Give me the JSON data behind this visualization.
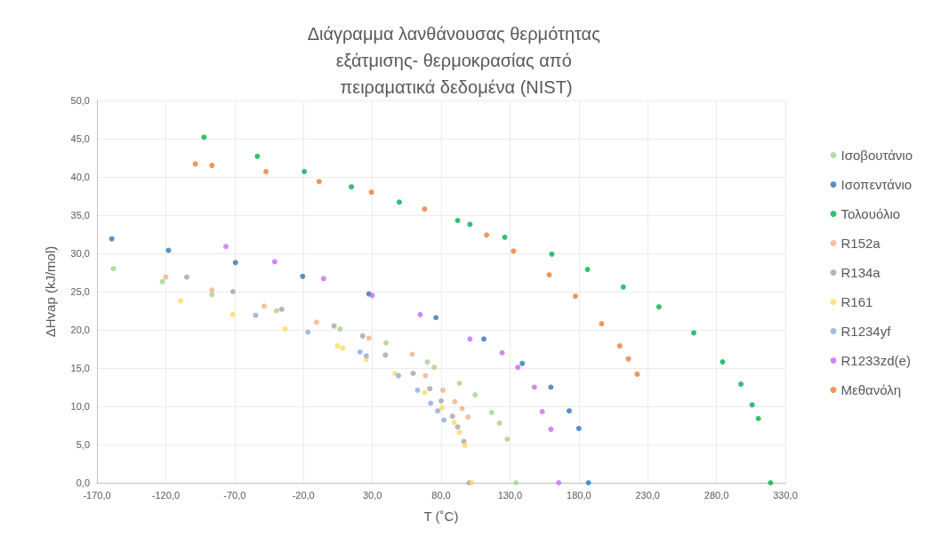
{
  "chart_data": {
    "type": "scatter",
    "title": "Διάγραμμα λανθάνουσας θερμότητας εξάτμισης- θερμοκρασίας από πειραματικά δεδομένα (NIST)",
    "xlabel": "T (˚C)",
    "ylabel": "ΔHvap (kJ/mol)",
    "xlim": [
      -170,
      330
    ],
    "xticks": [
      {
        "value": -170,
        "label": "-170,0"
      },
      {
        "value": -120,
        "label": "-120,0"
      },
      {
        "value": -70,
        "label": "-70,0"
      },
      {
        "value": -20,
        "label": "-20,0"
      },
      {
        "value": 30,
        "label": "30,0"
      },
      {
        "value": 80,
        "label": "80,0"
      },
      {
        "value": 130,
        "label": "130,0"
      },
      {
        "value": 180,
        "label": "180,0"
      },
      {
        "value": 230,
        "label": "230,0"
      },
      {
        "value": 280,
        "label": "280,0"
      },
      {
        "value": 330,
        "label": "330,0"
      }
    ],
    "ylim": [
      0,
      50
    ],
    "yticks": [
      {
        "value": 0,
        "label": "0,0"
      },
      {
        "value": 5,
        "label": "5,0"
      },
      {
        "value": 10,
        "label": "10,0"
      },
      {
        "value": 15,
        "label": "15,0"
      },
      {
        "value": 20,
        "label": "20,0"
      },
      {
        "value": 25,
        "label": "25,0"
      },
      {
        "value": 30,
        "label": "30,0"
      },
      {
        "value": 35,
        "label": "35,0"
      },
      {
        "value": 40,
        "label": "40,0"
      },
      {
        "value": 45,
        "label": "45,0"
      },
      {
        "value": 50,
        "label": "50,0"
      }
    ],
    "grid": true,
    "legend": "right",
    "marker": "circle",
    "series": [
      {
        "name": "Ισοβουτάνιο",
        "color": "#a9d18e",
        "x": [
          -158,
          -122.5,
          -86.5,
          -39.6,
          6.6,
          40,
          70,
          75,
          93.3,
          104.7,
          116.7,
          122.4,
          128,
          134.4
        ],
        "values": [
          28.0,
          26.3,
          24.6,
          22.5,
          20.1,
          18.3,
          15.8,
          15.1,
          13.0,
          11.5,
          9.2,
          7.8,
          5.7,
          0
        ]
      },
      {
        "name": "Ισοπεντάνιο",
        "color": "#2e75b6",
        "x": [
          -159.2,
          -118,
          -69.4,
          -20.6,
          27.5,
          76.2,
          111,
          138.9,
          159.7,
          173,
          180,
          187
        ],
        "values": [
          31.9,
          30.4,
          28.8,
          27.0,
          24.7,
          21.6,
          18.8,
          15.6,
          12.5,
          9.4,
          7.1,
          0
        ]
      },
      {
        "name": "Τολουόλιο",
        "color": "#00b050",
        "x": [
          -92.2,
          -53.5,
          -19.4,
          14.8,
          49.6,
          92,
          100.9,
          126.2,
          160.4,
          186.3,
          212.3,
          238.2,
          263.5,
          284.4,
          297.7,
          305.9,
          310.4,
          319.2
        ],
        "values": [
          45.2,
          42.7,
          40.7,
          38.7,
          36.7,
          34.3,
          33.8,
          32.1,
          29.9,
          27.9,
          25.6,
          23.0,
          19.6,
          15.8,
          12.9,
          10.2,
          8.4,
          0
        ]
      },
      {
        "name": "R152a",
        "color": "#f4b183",
        "x": [
          -120,
          -86.5,
          -48.5,
          -10.5,
          27.5,
          59,
          68.6,
          81.3,
          90,
          95.2,
          99.6
        ],
        "values": [
          26.9,
          25.2,
          23.1,
          21.0,
          18.9,
          16.8,
          14.0,
          12.1,
          10.6,
          9.7,
          8.6
        ]
      },
      {
        "name": "R134a",
        "color": "#a5a5a5",
        "x": [
          -104.8,
          -71.3,
          -35.8,
          2.2,
          23,
          39.5,
          59.7,
          71.8,
          80,
          88.2,
          92,
          96.5,
          100.3
        ],
        "values": [
          26.9,
          25.0,
          22.7,
          20.5,
          19.2,
          16.7,
          14.3,
          12.3,
          10.7,
          8.7,
          7.3,
          5.4,
          0
        ]
      },
      {
        "name": "R161",
        "color": "#ffd966",
        "x": [
          -109.3,
          -71.3,
          -33.3,
          4.7,
          8.5,
          25.6,
          46.5,
          68,
          80.6,
          89.5,
          93.3,
          97.1,
          102.2
        ],
        "values": [
          23.8,
          22.0,
          20.1,
          17.9,
          17.6,
          16.1,
          14.3,
          11.8,
          9.8,
          7.9,
          6.6,
          4.9,
          0
        ]
      },
      {
        "name": "R1234yf",
        "color": "#8faadc",
        "x": [
          -54.8,
          -16.8,
          21.1,
          25.6,
          49,
          62.9,
          72.4,
          77.5,
          82
        ],
        "values": [
          21.9,
          19.7,
          17.1,
          16.6,
          14.0,
          12.1,
          10.4,
          9.4,
          8.2
        ]
      },
      {
        "name": "R1233zd(e)",
        "color": "#cc66ff",
        "x": [
          -76.3,
          -40.9,
          -5.4,
          30,
          64.8,
          100.9,
          124.3,
          135.7,
          147.7,
          153.4,
          159.7,
          165.4
        ],
        "values": [
          30.9,
          28.9,
          26.7,
          24.5,
          22.0,
          18.8,
          17.0,
          15.1,
          12.5,
          9.3,
          7.0,
          0
        ]
      },
      {
        "name": "Μεθανόλη",
        "color": "#ed7d31",
        "x": [
          -98.5,
          -86.5,
          -47.2,
          -8.6,
          29.4,
          68,
          113,
          132.5,
          158.5,
          177.5,
          196.5,
          209.7,
          216,
          222.4
        ],
        "values": [
          41.7,
          41.5,
          40.7,
          39.4,
          38.0,
          35.8,
          32.4,
          30.3,
          27.2,
          24.4,
          20.8,
          17.9,
          16.2,
          14.2
        ]
      }
    ]
  }
}
